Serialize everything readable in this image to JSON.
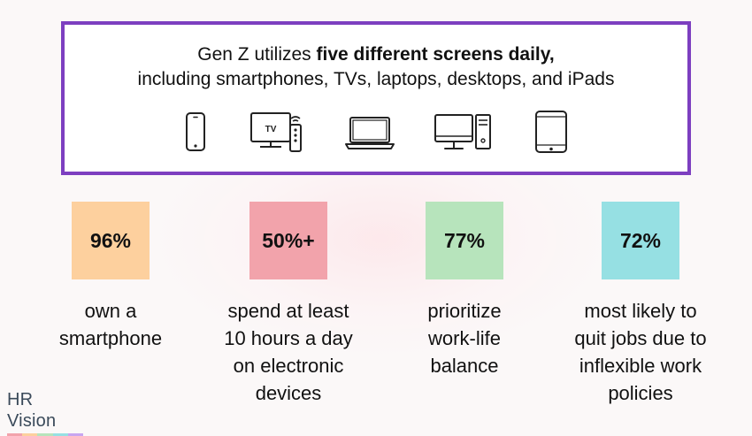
{
  "headline": {
    "prefix": "Gen Z utilizes ",
    "emphasis": "five different screens daily,",
    "line2": "including smartphones, TVs, laptops, desktops, and iPads"
  },
  "devices": [
    {
      "name": "smartphone",
      "icon": "smartphone-icon"
    },
    {
      "name": "tv",
      "icon": "tv-remote-icon",
      "label": "TV"
    },
    {
      "name": "laptop",
      "icon": "laptop-icon"
    },
    {
      "name": "desktop",
      "icon": "desktop-icon"
    },
    {
      "name": "tablet",
      "icon": "tablet-icon"
    }
  ],
  "colors": {
    "border": "#7d3fc0",
    "stat1": "#fdd09e",
    "stat2": "#f2a3ab",
    "stat3": "#b7e4bc",
    "stat4": "#96e0e3"
  },
  "stats": [
    {
      "value": "96%",
      "lines": [
        "own a",
        "smartphone"
      ]
    },
    {
      "value": "50%+",
      "lines": [
        "spend at least",
        "10 hours a day",
        "on electronic",
        "devices"
      ]
    },
    {
      "value": "77%",
      "lines": [
        "prioritize",
        "work-life",
        "balance"
      ]
    },
    {
      "value": "72%",
      "lines": [
        "most likely to",
        "quit jobs due to",
        "inflexible work",
        "policies"
      ]
    }
  ],
  "logo": {
    "text": "HR Vision",
    "bar_colors": [
      "#f2a3ab",
      "#fdd09e",
      "#b7e4bc",
      "#96e0e3",
      "#c8a6f0"
    ]
  }
}
